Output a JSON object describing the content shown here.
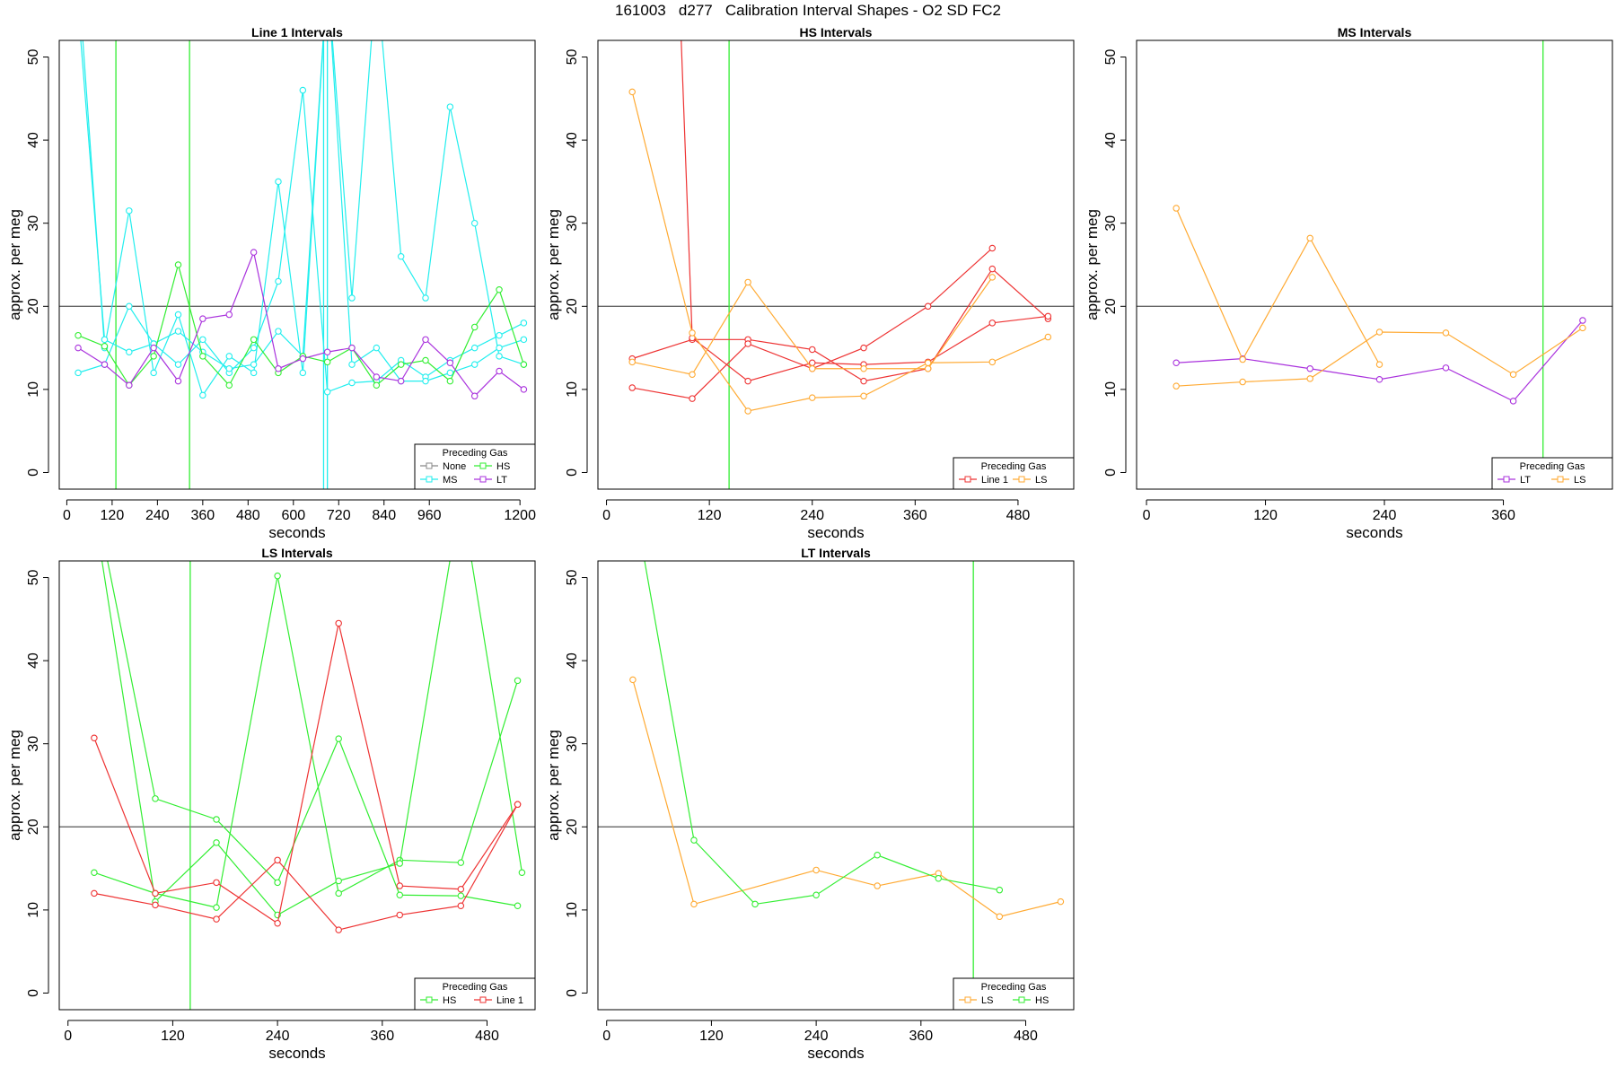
{
  "page": {
    "title": "161003   d277   Calibration Interval Shapes - O2 SD FC2"
  },
  "colors": {
    "None": "#888888",
    "HS": "#33ee33",
    "MS": "#22eeee",
    "LT": "#aa33dd",
    "Line 1": "#ee3333",
    "LS": "#ffaa33",
    "hline": "#666666",
    "vline": "#338833"
  },
  "chart_data": [
    {
      "type": "line",
      "title": "Line 1 Intervals",
      "xlabel": "seconds",
      "ylabel": "approx. per meg",
      "xlim": [
        -20,
        1240
      ],
      "ylim": [
        -2,
        52
      ],
      "xticks": [
        0,
        120,
        240,
        360,
        480,
        600,
        720,
        840,
        960,
        1200
      ],
      "yticks": [
        0,
        10,
        20,
        30,
        40,
        50
      ],
      "hline": 20,
      "vlines": [
        {
          "x": 130,
          "gas": "HS"
        },
        {
          "x": 325,
          "gas": "HS"
        },
        {
          "x": 680,
          "gas": "MS"
        },
        {
          "x": 690,
          "gas": "MS"
        }
      ],
      "legend": {
        "title": "Preceding Gas",
        "entries": [
          "None",
          "HS",
          "MS",
          "LT"
        ],
        "position": "bottom-right",
        "ncol": 2
      },
      "series": [
        {
          "gas": "MS",
          "x": [
            30,
            100,
            165,
            230,
            295,
            360,
            430,
            495,
            560,
            625,
            690,
            755,
            820,
            885,
            950,
            1015,
            1080,
            1145,
            1210
          ],
          "y": [
            60,
            15,
            31.5,
            12,
            19,
            9.3,
            14,
            12,
            35,
            12,
            60,
            21,
            60,
            26,
            21,
            44,
            30,
            14,
            13
          ]
        },
        {
          "gas": "MS",
          "x": [
            30,
            100,
            165,
            230,
            295,
            360,
            430,
            495,
            560,
            625,
            690,
            755,
            820,
            885,
            950,
            1015,
            1080,
            1145,
            1210
          ],
          "y": [
            12,
            13,
            20,
            15.5,
            13,
            16,
            12,
            15,
            23,
            46,
            9.7,
            10.8,
            11,
            13.5,
            11.5,
            13.5,
            15,
            16.5,
            18
          ]
        },
        {
          "gas": "MS",
          "x": [
            30,
            100,
            165,
            230,
            295,
            360,
            430,
            495,
            560,
            625,
            690,
            755,
            820,
            885,
            950,
            1015,
            1080,
            1145,
            1210
          ],
          "y": [
            56,
            16,
            14.5,
            15.5,
            17,
            14.5,
            12.5,
            13,
            17,
            14,
            60,
            13,
            15,
            11,
            11,
            12,
            13,
            15,
            16
          ]
        },
        {
          "gas": "HS",
          "x": [
            30,
            100,
            165,
            230,
            295,
            360,
            430,
            495,
            560,
            625,
            690,
            755,
            820,
            885,
            950,
            1015,
            1080,
            1145,
            1210
          ],
          "y": [
            16.5,
            15.2,
            10.5,
            14,
            25,
            14,
            10.5,
            16,
            12,
            14,
            13.3,
            15,
            10.5,
            13,
            13.5,
            11,
            17.5,
            22,
            13
          ]
        },
        {
          "gas": "LT",
          "x": [
            30,
            100,
            165,
            230,
            295,
            360,
            430,
            495,
            560,
            625,
            690,
            755,
            820,
            885,
            950,
            1015,
            1080,
            1145,
            1210
          ],
          "y": [
            15,
            13,
            10.5,
            15,
            11,
            18.5,
            19,
            26.5,
            12.5,
            13.7,
            14.5,
            15,
            11.5,
            11,
            16,
            13.2,
            9.2,
            12.2,
            10
          ]
        }
      ]
    },
    {
      "type": "line",
      "title": "HS Intervals",
      "xlabel": "seconds",
      "ylabel": "approx. per meg",
      "xlim": [
        -10,
        545
      ],
      "ylim": [
        -2,
        52
      ],
      "xticks": [
        0,
        120,
        240,
        360,
        480
      ],
      "yticks": [
        0,
        10,
        20,
        30,
        40,
        50
      ],
      "hline": 20,
      "vlines": [
        {
          "x": 143,
          "gas": "HS"
        }
      ],
      "legend": {
        "title": "Preceding Gas",
        "entries": [
          "Line 1",
          "LS"
        ],
        "position": "bottom-right",
        "ncol": 2
      },
      "series": [
        {
          "gas": "Line 1",
          "x": [
            30,
            100,
            165,
            240,
            300,
            375,
            450,
            515
          ],
          "y": [
            13.7,
            16,
            16,
            14.8,
            11,
            12.5,
            24.5,
            18.5
          ]
        },
        {
          "gas": "Line 1",
          "x": [
            30,
            100,
            165,
            240,
            300,
            375,
            450
          ],
          "y": [
            10.2,
            8.9,
            15.5,
            12.5,
            15,
            20,
            27
          ]
        },
        {
          "gas": "Line 1",
          "x": [
            85,
            100,
            165,
            240,
            300,
            375,
            450,
            515
          ],
          "y": [
            58,
            16.2,
            11,
            13.2,
            13,
            13.3,
            18,
            18.8
          ]
        },
        {
          "gas": "LS",
          "x": [
            30,
            100,
            165,
            240,
            300,
            375,
            450,
            515
          ],
          "y": [
            45.8,
            16.8,
            7.4,
            9,
            9.2,
            13.2,
            13.3,
            16.3
          ]
        },
        {
          "gas": "LS",
          "x": [
            30,
            100,
            165,
            240,
            300,
            375,
            450
          ],
          "y": [
            13.3,
            11.8,
            22.9,
            12.5,
            12.5,
            12.5,
            23.5
          ]
        }
      ]
    },
    {
      "type": "line",
      "title": "MS Intervals",
      "xlabel": "seconds",
      "ylabel": "approx. per meg",
      "xlim": [
        -10,
        470
      ],
      "ylim": [
        -2,
        52
      ],
      "xticks": [
        0,
        120,
        240,
        360
      ],
      "yticks": [
        0,
        10,
        20,
        30,
        40,
        50
      ],
      "hline": 20,
      "vlines": [
        {
          "x": 400,
          "gas": "HS"
        }
      ],
      "legend": {
        "title": "Preceding Gas",
        "entries": [
          "LT",
          "LS"
        ],
        "position": "bottom-right",
        "ncol": 2
      },
      "series": [
        {
          "gas": "LT",
          "x": [
            30,
            97,
            165,
            235,
            302,
            370,
            440
          ],
          "y": [
            13.2,
            13.7,
            12.5,
            11.2,
            12.6,
            8.6,
            18.3
          ]
        },
        {
          "gas": "LS",
          "x": [
            30,
            97,
            165,
            235,
            302,
            370,
            440
          ],
          "y": [
            10.4,
            10.9,
            11.3,
            16.9,
            16.8,
            11.8,
            17.4
          ]
        },
        {
          "gas": "LS",
          "x": [
            30,
            97,
            165,
            235
          ],
          "y": [
            31.8,
            13.6,
            28.2,
            13
          ]
        }
      ]
    },
    {
      "type": "line",
      "title": "LS Intervals",
      "xlabel": "seconds",
      "ylabel": "approx. per meg",
      "xlim": [
        -10,
        535
      ],
      "ylim": [
        -2,
        52
      ],
      "xticks": [
        0,
        120,
        240,
        360,
        480
      ],
      "yticks": [
        0,
        10,
        20,
        30,
        40,
        50
      ],
      "hline": 20,
      "vlines": [
        {
          "x": 140,
          "gas": "HS"
        }
      ],
      "legend": {
        "title": "Preceding Gas",
        "entries": [
          "HS",
          "Line 1"
        ],
        "position": "bottom-right",
        "ncol": 2
      },
      "series": [
        {
          "gas": "HS",
          "x": [
            30,
            100,
            170,
            240,
            310,
            380,
            450,
            515
          ],
          "y": [
            14.5,
            12,
            10.3,
            50.2,
            12,
            16,
            15.7,
            37.6
          ]
        },
        {
          "gas": "HS",
          "x": [
            30,
            100,
            170,
            240,
            310,
            380,
            450,
            515
          ],
          "y": [
            60,
            23.4,
            20.9,
            13.3,
            30.6,
            11.8,
            11.7,
            10.5
          ]
        },
        {
          "gas": "HS",
          "x": [
            30,
            100,
            170,
            240,
            310,
            380,
            450,
            520
          ],
          "y": [
            58,
            11,
            18.1,
            9.4,
            13.5,
            15.6,
            60,
            14.5
          ]
        },
        {
          "gas": "Line 1",
          "x": [
            30,
            100,
            170,
            240,
            310,
            380,
            450,
            515
          ],
          "y": [
            30.7,
            12,
            13.3,
            8.4,
            44.5,
            12.9,
            12.5,
            22.7
          ]
        },
        {
          "gas": "Line 1",
          "x": [
            30,
            100,
            170,
            240,
            310,
            380,
            450,
            515
          ],
          "y": [
            12,
            10.6,
            8.9,
            16,
            7.6,
            9.4,
            10.5,
            22.7
          ]
        }
      ]
    },
    {
      "type": "line",
      "title": "LT Intervals",
      "xlabel": "seconds",
      "ylabel": "approx. per meg",
      "xlim": [
        -10,
        535
      ],
      "ylim": [
        -2,
        52
      ],
      "xticks": [
        0,
        120,
        240,
        360,
        480
      ],
      "yticks": [
        0,
        10,
        20,
        30,
        40,
        50
      ],
      "hline": 20,
      "vlines": [
        {
          "x": 420,
          "gas": "HS"
        }
      ],
      "legend": {
        "title": "Preceding Gas",
        "entries": [
          "LS",
          "HS"
        ],
        "position": "bottom-right",
        "ncol": 2
      },
      "series": [
        {
          "gas": "LS",
          "x": [
            30,
            100,
            240,
            310,
            380,
            450,
            520
          ],
          "y": [
            37.7,
            10.7,
            14.8,
            12.9,
            14.4,
            9.2,
            11
          ]
        },
        {
          "gas": "HS",
          "x": [
            30,
            100,
            170,
            240,
            310,
            380,
            450
          ],
          "y": [
            60,
            18.4,
            10.7,
            11.8,
            16.6,
            13.8,
            12.4
          ]
        }
      ]
    }
  ]
}
